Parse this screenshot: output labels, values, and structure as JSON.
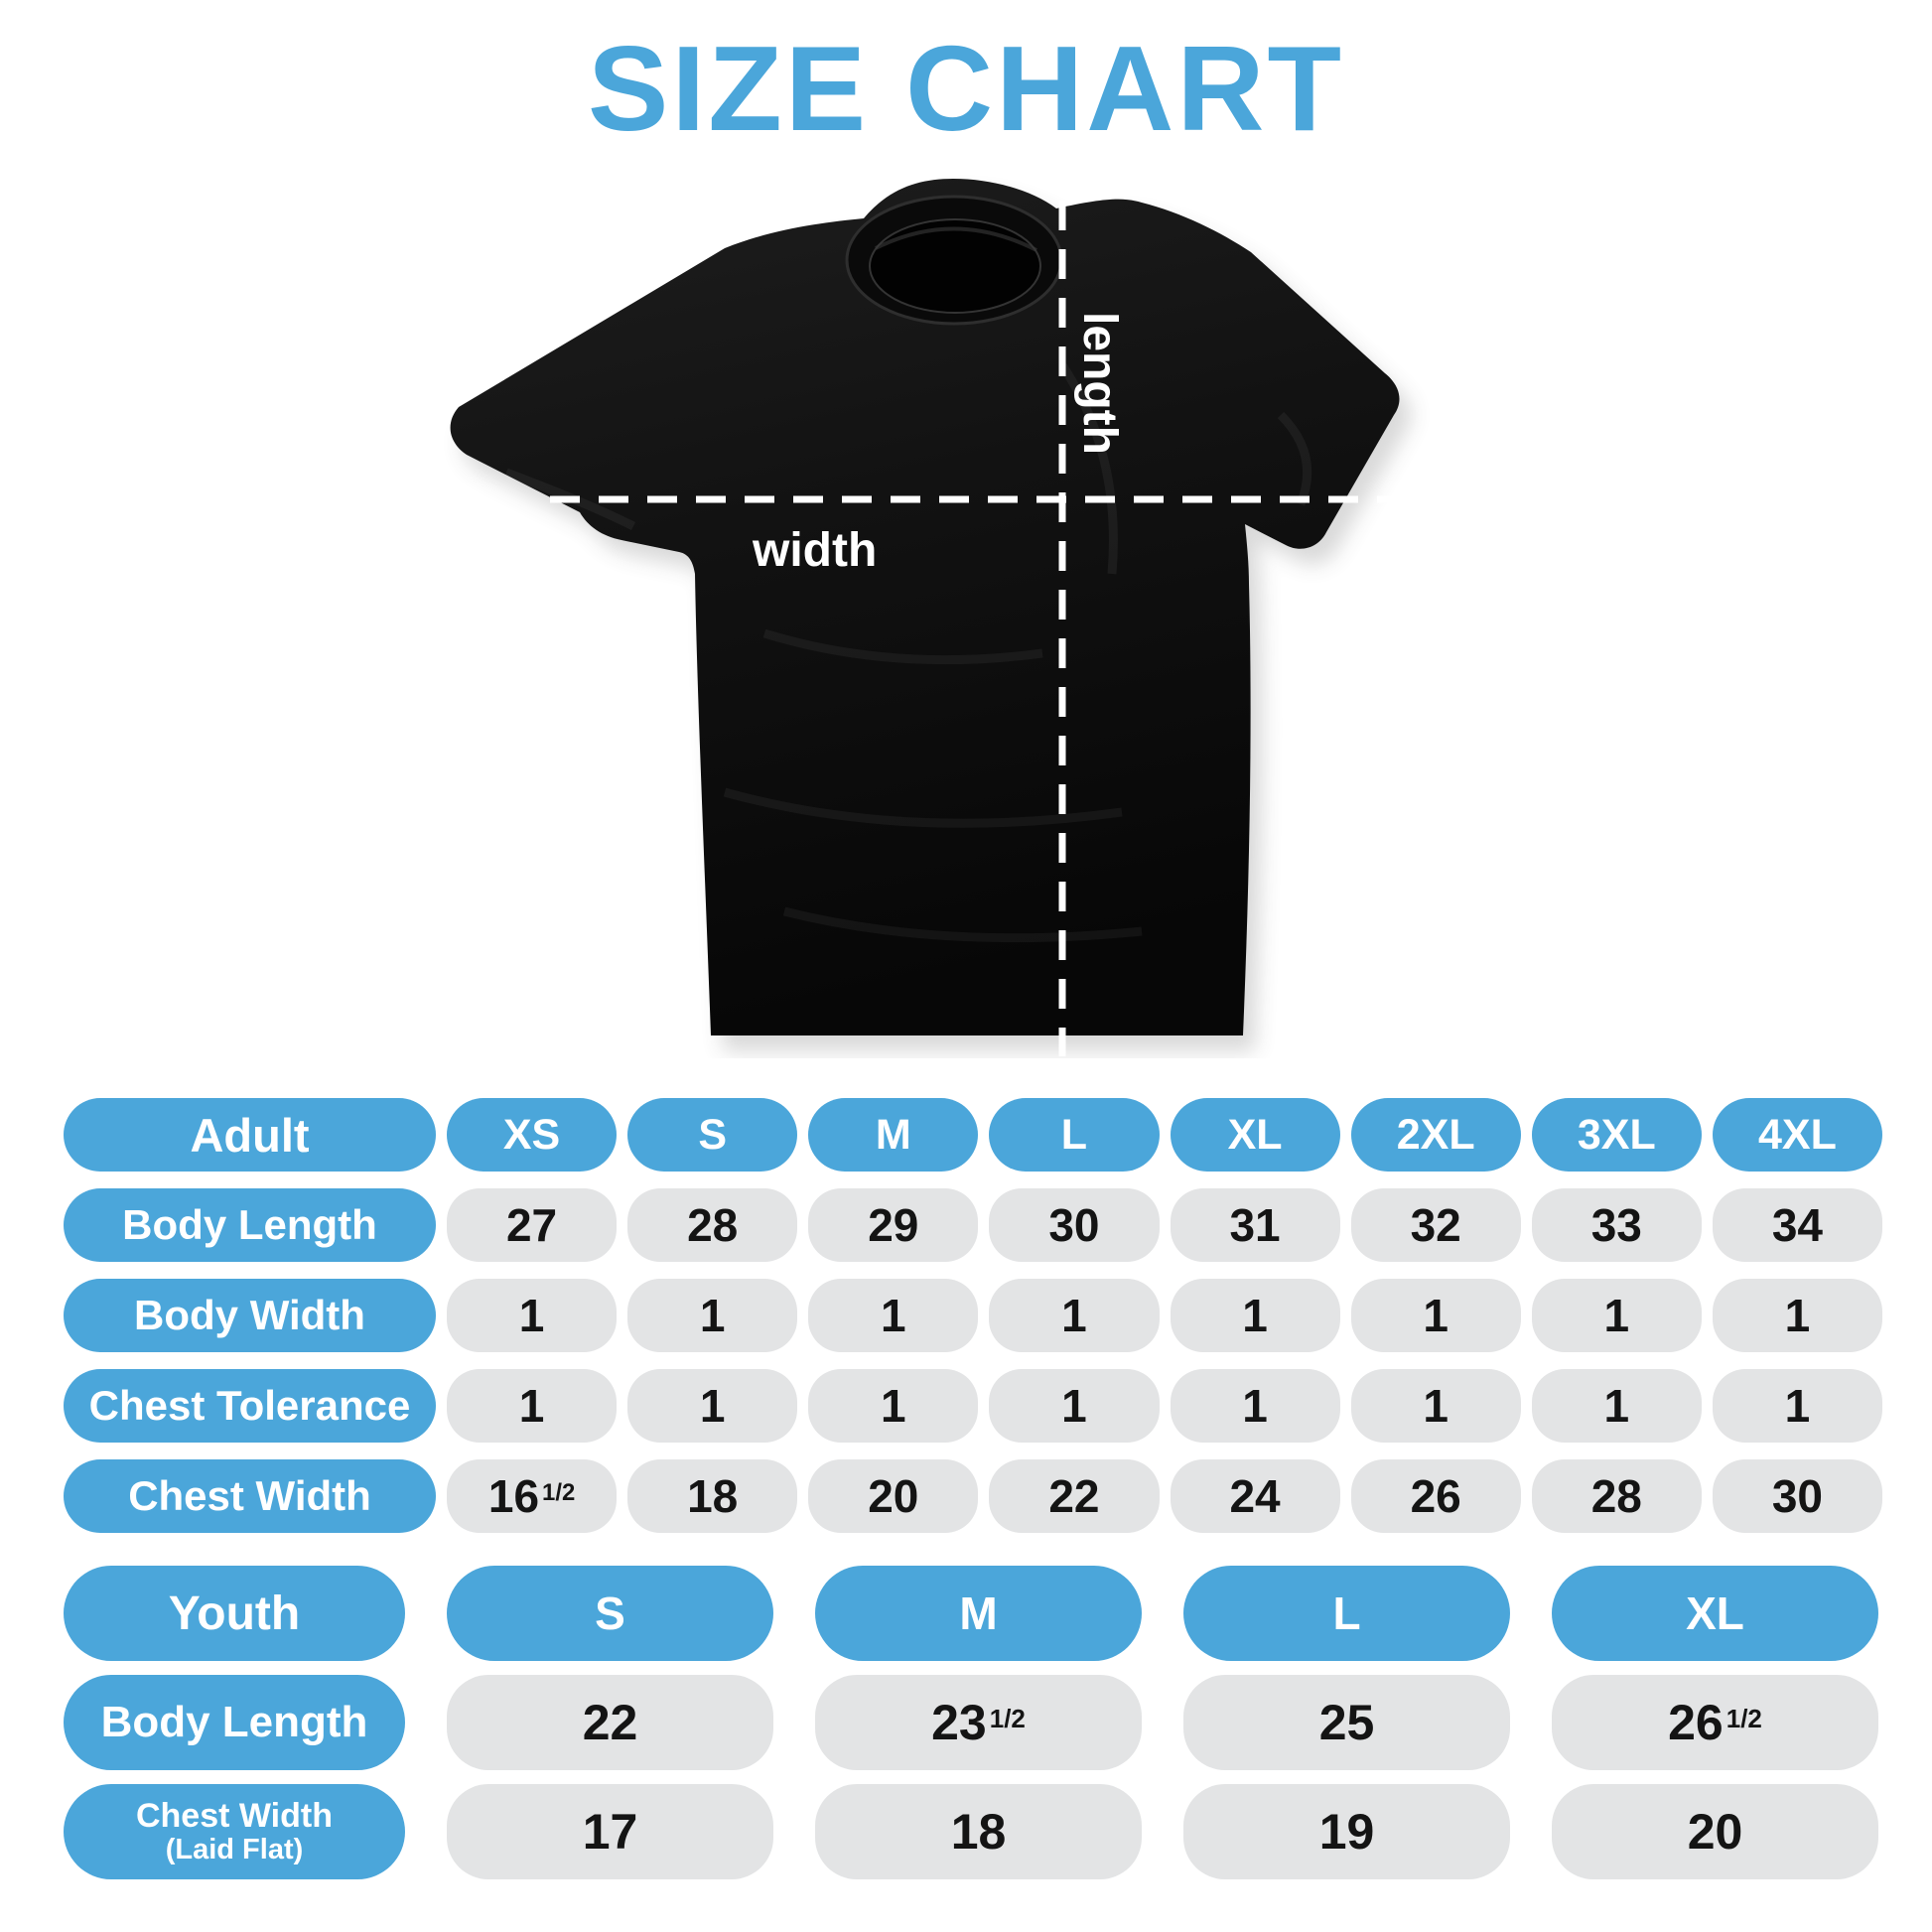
{
  "title": "SIZE CHART",
  "colors": {
    "accent_blue": "#4BA6DA",
    "cell_gray": "#E3E4E5",
    "value_text": "#141414",
    "pill_text": "#FFFFFF",
    "shirt_black": "#0D0D0D",
    "measure_line": "#FFFFFF",
    "background": "#FFFFFF"
  },
  "diagram": {
    "length_label": "length",
    "width_label": "width"
  },
  "chart_data": [
    {
      "type": "table",
      "name": "adult",
      "header_label": "Adult",
      "columns": [
        "XS",
        "S",
        "M",
        "L",
        "XL",
        "2XL",
        "3XL",
        "4XL"
      ],
      "rows": [
        {
          "label": "Body Length",
          "values": [
            27,
            28,
            29,
            30,
            31,
            32,
            33,
            34
          ]
        },
        {
          "label": "Body Width",
          "values": [
            1,
            1,
            1,
            1,
            1,
            1,
            1,
            1
          ]
        },
        {
          "label": "Chest Tolerance",
          "values": [
            1,
            1,
            1,
            1,
            1,
            1,
            1,
            1
          ]
        },
        {
          "label": "Chest Width",
          "values": [
            16.5,
            18,
            20,
            22,
            24,
            26,
            28,
            30
          ]
        }
      ]
    },
    {
      "type": "table",
      "name": "youth",
      "header_label": "Youth",
      "columns": [
        "S",
        "M",
        "L",
        "XL"
      ],
      "rows": [
        {
          "label": "Body Length",
          "values": [
            22,
            23.5,
            25,
            26.5
          ]
        },
        {
          "label": "Chest Width",
          "label_line2": "(Laid Flat)",
          "values": [
            17,
            18,
            19,
            20
          ]
        }
      ]
    }
  ],
  "fraction_glyph": "1/2"
}
